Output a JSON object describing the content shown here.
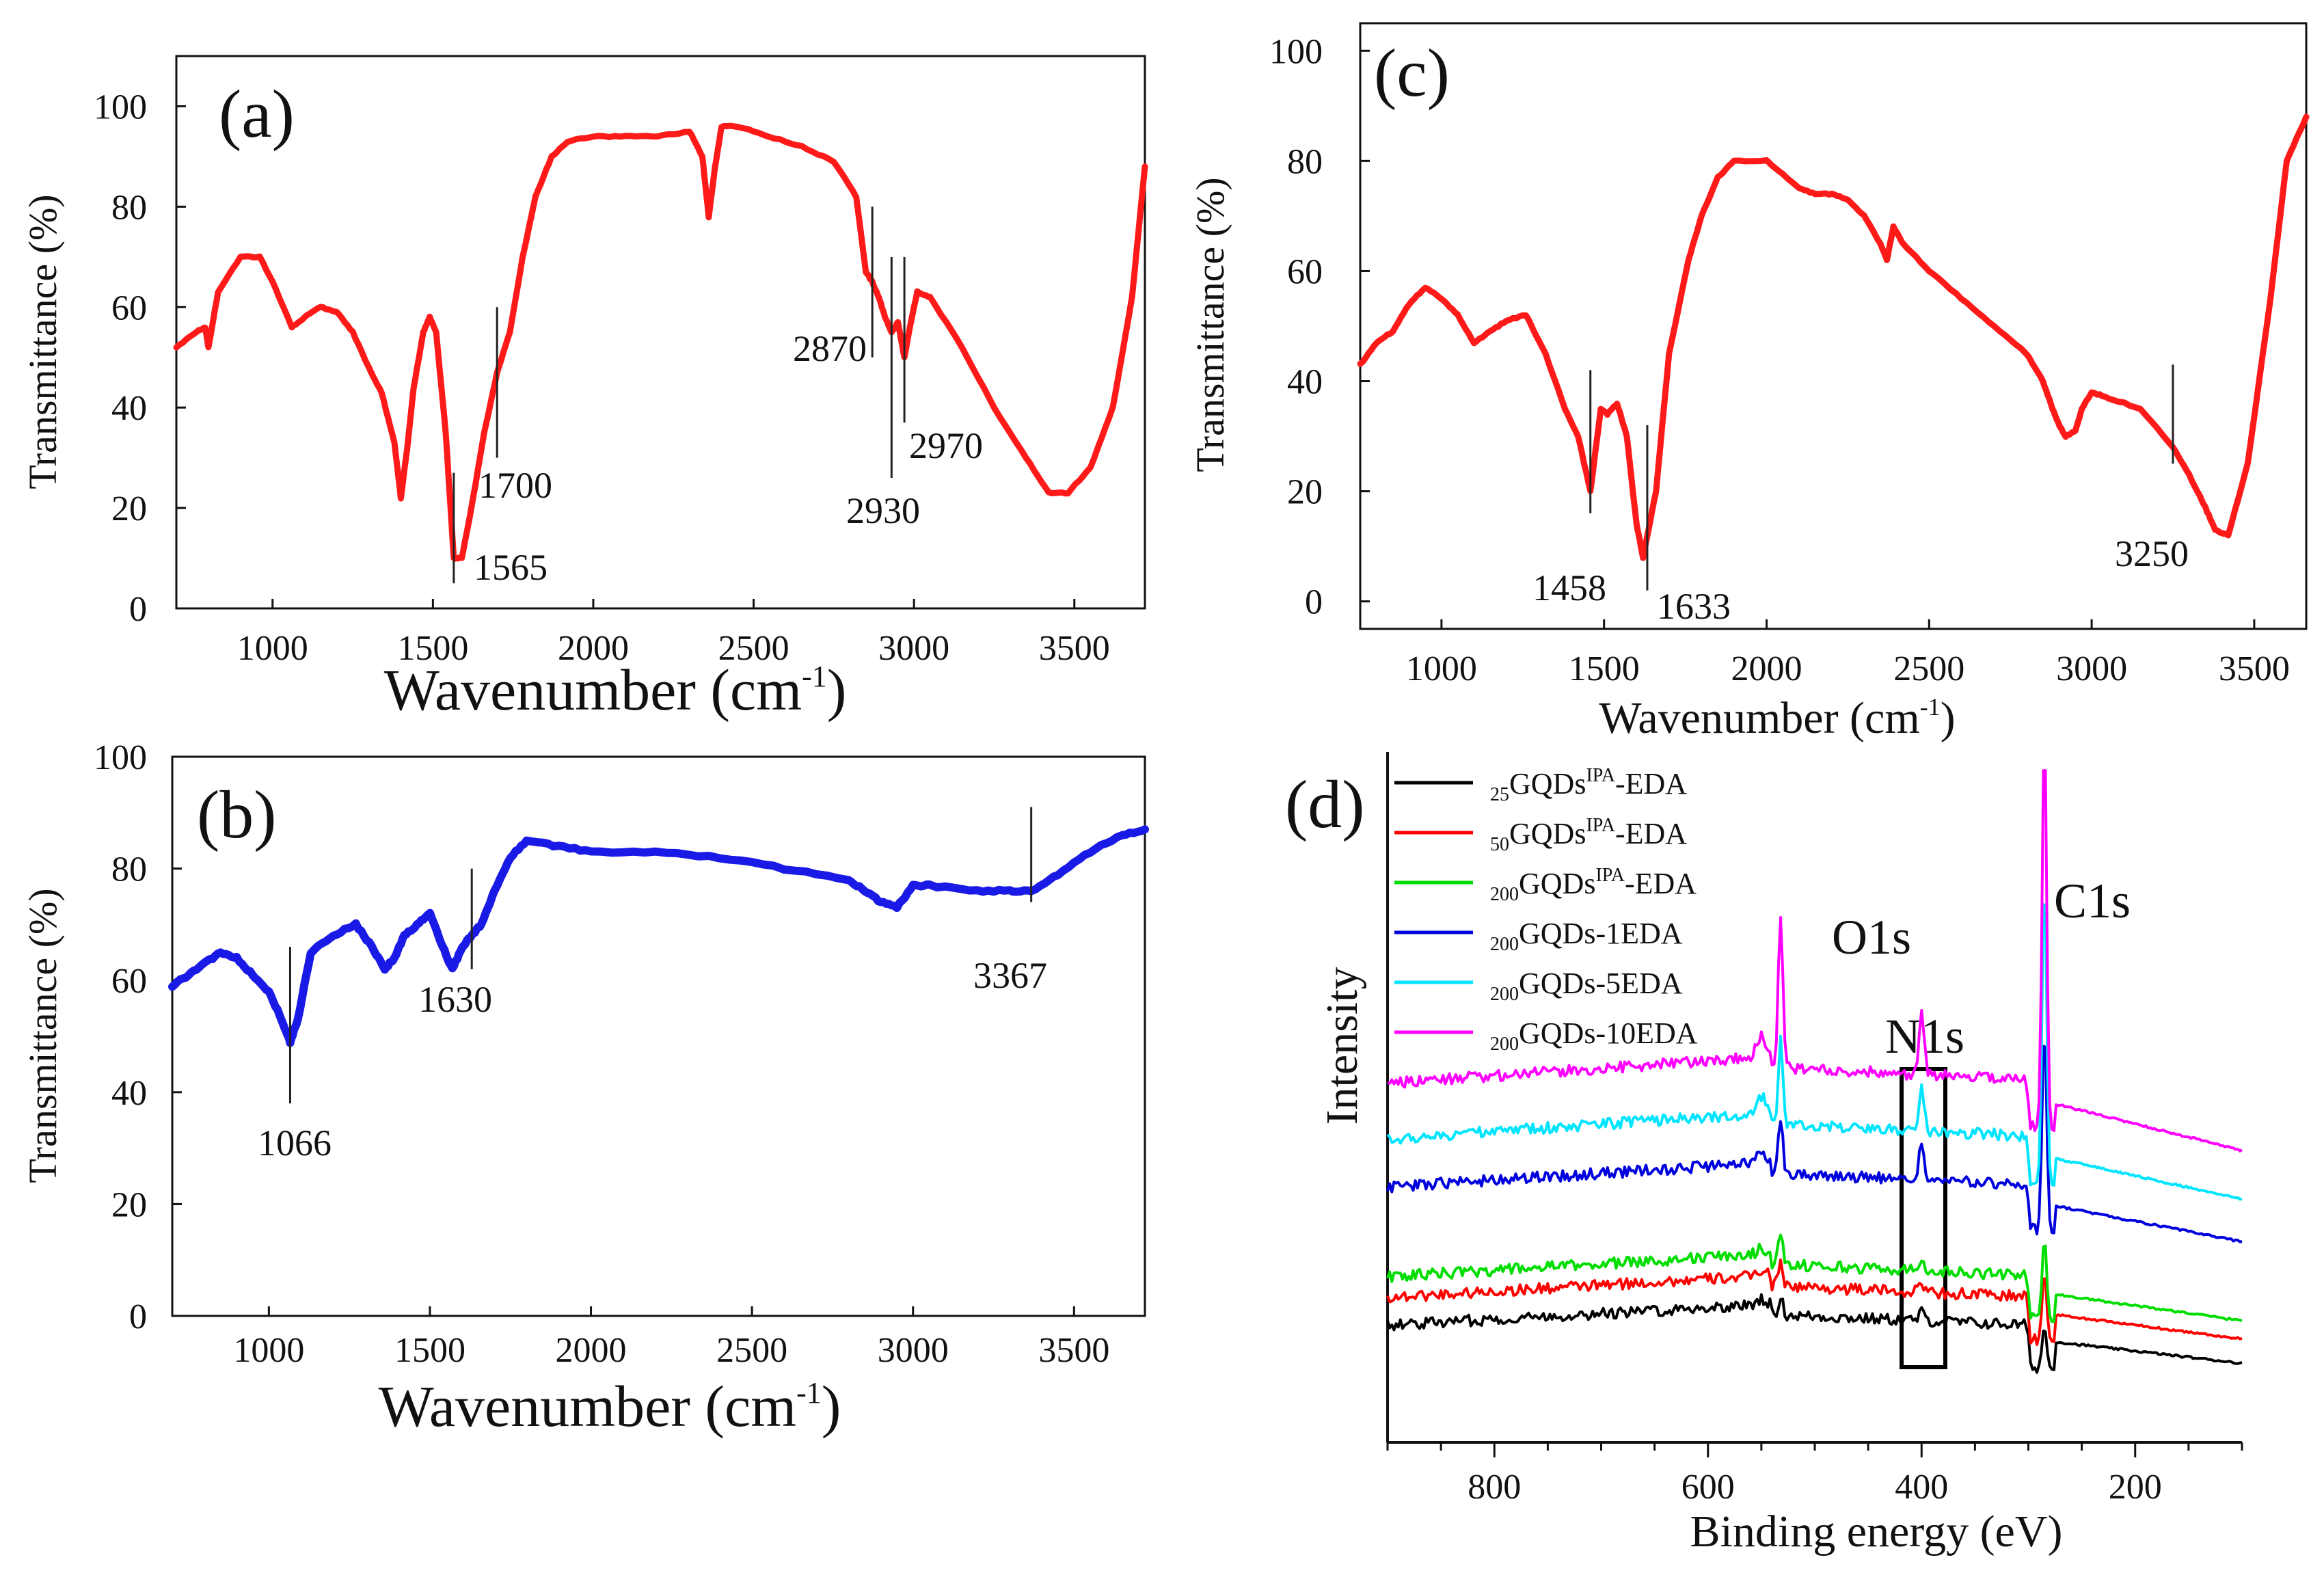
{
  "colors": {
    "panel_a": "#ff1a1a",
    "panel_b": "#1a1ae6",
    "panel_c": "#ff1a1a",
    "axis": "#111111"
  },
  "chart_data": [
    {
      "id": "a",
      "type": "line",
      "panel_label": "(a)",
      "ylabel": "Transmittance (%)",
      "xlabel": "Wavenumber (cm",
      "xlabel_sup": "-1",
      "xlabel_close": ")",
      "xlim": [
        700,
        3720
      ],
      "ylim": [
        0,
        110
      ],
      "x_ticks": [
        1000,
        1500,
        2000,
        2500,
        3000,
        3500
      ],
      "x_tick_labels": [
        "1000",
        "1500",
        "2000",
        "2500",
        "3000",
        "3500"
      ],
      "y_ticks": [
        0,
        20,
        40,
        60,
        80,
        100
      ],
      "y_tick_labels": [
        "0",
        "20",
        "40",
        "60",
        "80",
        "100"
      ],
      "series": [
        {
          "name": "a",
          "x": [
            700,
            760,
            790,
            800,
            830,
            900,
            960,
            1000,
            1060,
            1100,
            1150,
            1200,
            1250,
            1300,
            1340,
            1380,
            1400,
            1420,
            1440,
            1470,
            1490,
            1510,
            1540,
            1565,
            1590,
            1620,
            1660,
            1700,
            1740,
            1780,
            1820,
            1870,
            1920,
            2000,
            2100,
            2200,
            2300,
            2340,
            2360,
            2380,
            2400,
            2450,
            2550,
            2650,
            2750,
            2820,
            2850,
            2870,
            2890,
            2910,
            2930,
            2950,
            2970,
            2990,
            3010,
            3050,
            3150,
            3250,
            3350,
            3420,
            3480,
            3550,
            3620,
            3680,
            3720
          ],
          "y": [
            52,
            55,
            56,
            52,
            63,
            70,
            70,
            65,
            56,
            58,
            60,
            59,
            55,
            48,
            43,
            33,
            22,
            32,
            44,
            55,
            58,
            55,
            35,
            10,
            10,
            20,
            35,
            47,
            55,
            70,
            82,
            90,
            93,
            94,
            94,
            94,
            95,
            90,
            78,
            88,
            96,
            96,
            94,
            92,
            89,
            82,
            67,
            65,
            62,
            58,
            55,
            57,
            50,
            57,
            63,
            62,
            52,
            40,
            30,
            23,
            23,
            28,
            40,
            62,
            88
          ]
        }
      ],
      "annotations": [
        {
          "x": 1565,
          "label": "1565"
        },
        {
          "x": 1700,
          "label": "1700"
        },
        {
          "x": 2870,
          "label": "2870"
        },
        {
          "x": 2930,
          "label": "2930"
        },
        {
          "x": 2970,
          "label": "2970"
        }
      ]
    },
    {
      "id": "b",
      "type": "line",
      "panel_label": "(b)",
      "ylabel": "Transmittance (%)",
      "xlabel": "Wavenumber (cm",
      "xlabel_sup": "-1",
      "xlabel_close": ")",
      "xlim": [
        700,
        3720
      ],
      "ylim": [
        0,
        100
      ],
      "x_ticks": [
        1000,
        1500,
        2000,
        2500,
        3000,
        3500
      ],
      "x_tick_labels": [
        "1000",
        "1500",
        "2000",
        "2500",
        "3000",
        "3500"
      ],
      "y_ticks": [
        0,
        20,
        40,
        60,
        80,
        100
      ],
      "y_tick_labels": [
        "0",
        "20",
        "40",
        "60",
        "80",
        "100"
      ],
      "series": [
        {
          "name": "b",
          "x": [
            700,
            750,
            800,
            850,
            900,
            950,
            1000,
            1040,
            1066,
            1090,
            1130,
            1200,
            1270,
            1320,
            1360,
            1390,
            1420,
            1460,
            1500,
            1540,
            1570,
            1600,
            1630,
            1660,
            1700,
            1750,
            1800,
            1900,
            2000,
            2200,
            2400,
            2600,
            2800,
            2850,
            2900,
            2950,
            3000,
            3050,
            3200,
            3300,
            3367,
            3450,
            3550,
            3650,
            3720
          ],
          "y": [
            59,
            61,
            63,
            65,
            64,
            61,
            58,
            53,
            49,
            53,
            65,
            68,
            70,
            66,
            62,
            64,
            68,
            70,
            72,
            66,
            62,
            66,
            68,
            70,
            76,
            82,
            85,
            84,
            83,
            83,
            82,
            80,
            78,
            76,
            74,
            73,
            77,
            77,
            76,
            76,
            76,
            79,
            83,
            86,
            87
          ]
        }
      ],
      "annotations": [
        {
          "x": 1066,
          "label": "1066"
        },
        {
          "x": 1630,
          "label": "1630"
        },
        {
          "x": 3367,
          "label": "3367"
        }
      ]
    },
    {
      "id": "c",
      "type": "line",
      "panel_label": "(c)",
      "ylabel": "Transmittance (%)",
      "xlabel": "Wavenumber (cm",
      "xlabel_sup": "-1",
      "xlabel_close": ")",
      "xlim": [
        750,
        3660
      ],
      "ylim": [
        -5,
        105
      ],
      "x_ticks": [
        1000,
        1500,
        2000,
        2500,
        3000,
        3500
      ],
      "x_tick_labels": [
        "1000",
        "1500",
        "2000",
        "2500",
        "3000",
        "3500"
      ],
      "y_ticks": [
        0,
        20,
        40,
        60,
        80,
        100
      ],
      "y_tick_labels": [
        "0",
        "20",
        "40",
        "60",
        "80",
        "100"
      ],
      "series": [
        {
          "name": "c",
          "x": [
            750,
            800,
            850,
            900,
            950,
            1000,
            1050,
            1100,
            1150,
            1200,
            1260,
            1320,
            1380,
            1420,
            1458,
            1490,
            1510,
            1540,
            1570,
            1600,
            1620,
            1660,
            1700,
            1760,
            1800,
            1850,
            1900,
            2000,
            2100,
            2150,
            2200,
            2250,
            2300,
            2350,
            2370,
            2390,
            2420,
            2500,
            2600,
            2700,
            2800,
            2850,
            2880,
            2900,
            2920,
            2950,
            2970,
            3000,
            3050,
            3150,
            3250,
            3300,
            3350,
            3380,
            3420,
            3480,
            3550,
            3600,
            3660
          ],
          "y": [
            43,
            47,
            49,
            54,
            57,
            55,
            52,
            47,
            49,
            51,
            52,
            45,
            35,
            30,
            20,
            35,
            34,
            36,
            30,
            14,
            8,
            20,
            45,
            62,
            70,
            77,
            80,
            80,
            75,
            74,
            74,
            73,
            70,
            65,
            62,
            68,
            65,
            60,
            55,
            50,
            45,
            40,
            35,
            32,
            30,
            31,
            35,
            38,
            37,
            35,
            28,
            23,
            17,
            13,
            12,
            25,
            55,
            80,
            88
          ]
        }
      ],
      "annotations": [
        {
          "x": 1458,
          "label": "1458"
        },
        {
          "x": 1633,
          "label": "1633"
        },
        {
          "x": 3250,
          "label": "3250"
        }
      ]
    },
    {
      "id": "d",
      "type": "line",
      "panel_label": "(d)",
      "ylabel": "Intensity",
      "xlabel": "Binding energy (eV)",
      "xlim": [
        900,
        100
      ],
      "ylim": [
        0,
        100
      ],
      "x_ticks": [
        800,
        600,
        400,
        200
      ],
      "x_tick_labels": [
        "800",
        "600",
        "400",
        "200"
      ],
      "peak_labels": [
        "O1s",
        "N1s",
        "C1s"
      ],
      "legend_position": "top-left",
      "series": [
        {
          "name": "25GQDsIPA-EDA",
          "sub": "25",
          "main": "GQDs",
          "sup": "IPA",
          "tail": "-EDA",
          "color": "#000000",
          "offset": 17
        },
        {
          "name": "50GQDsIPA-EDA",
          "sub": "50",
          "main": "GQDs",
          "sup": "IPA",
          "tail": "-EDA",
          "color": "#ff0000",
          "offset": 21
        },
        {
          "name": "200GQDsIPA-EDA",
          "sub": "200",
          "main": "GQDs",
          "sup": "IPA",
          "tail": "-EDA",
          "color": "#00dd00",
          "offset": 24
        },
        {
          "name": "200GQDs-1EDA",
          "sub": "200",
          "main": "GQDs-1EDA",
          "sup": "",
          "tail": "",
          "color": "#0000dd",
          "offset": 37
        },
        {
          "name": "200GQDs-5EDA",
          "sub": "200",
          "main": "GQDs-5EDA",
          "sup": "",
          "tail": "",
          "color": "#00e5ff",
          "offset": 44
        },
        {
          "name": "200GQDs-10EDA",
          "sub": "200",
          "main": "GQDs-10EDA",
          "sup": "",
          "tail": "",
          "color": "#ff00ff",
          "offset": 52
        }
      ]
    }
  ]
}
